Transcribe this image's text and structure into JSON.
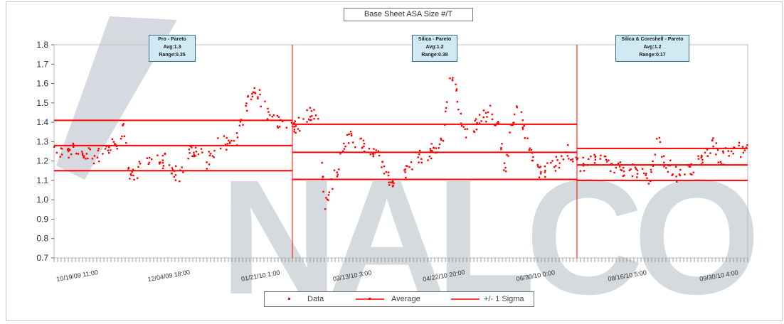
{
  "chart_data": {
    "type": "scatter",
    "title": "Base Sheet ASA Size #/T",
    "xlabel": "",
    "ylabel": "",
    "ylim": [
      0.7,
      1.8
    ],
    "y_ticks": [
      "1.8",
      "1.7",
      "1.6",
      "1.5",
      "1.4",
      "1.3",
      "1.2",
      "1.1",
      "1.0",
      "0.9",
      "0.8",
      "0.7"
    ],
    "x_tick_labels": [
      "10/19/09 11:00",
      "12/04/09 18:00",
      "01/21/10 1:00",
      "03/13/10 3:00",
      "04/22/10 20:00",
      "06/30/10 0:00",
      "08/16/10 5:00",
      "09/30/10 4:00"
    ],
    "legend_placement": "bottom",
    "grid": false,
    "colors": {
      "data": "#ff0000",
      "lines": "#ff0000",
      "watermark": "#b4bcc6"
    },
    "segments": [
      {
        "label": "Pro - Pareto",
        "avg_label": "Avg:1.3",
        "range_label": "Range:0.35",
        "average": 1.28,
        "upper_sigma": 1.41,
        "lower_sigma": 1.15
      },
      {
        "label": "Silica - Pareto",
        "avg_label": "Avg:1.2",
        "range_label": "Range:0.38",
        "average": 1.245,
        "upper_sigma": 1.39,
        "lower_sigma": 1.105
      },
      {
        "label": "Silica & Coreshell - Pareto",
        "avg_label": "Avg:1.2",
        "range_label": "Range:0.17",
        "average": 1.18,
        "upper_sigma": 1.265,
        "lower_sigma": 1.1
      }
    ],
    "series": [
      {
        "name": "Data",
        "trend": [
          [
            0,
            1.24
          ],
          [
            0.03,
            1.26
          ],
          [
            0.06,
            1.22
          ],
          [
            0.09,
            1.3
          ],
          [
            0.1,
            1.36
          ],
          [
            0.11,
            1.1
          ],
          [
            0.13,
            1.2
          ],
          [
            0.16,
            1.2
          ],
          [
            0.18,
            1.12
          ],
          [
            0.2,
            1.27
          ],
          [
            0.22,
            1.2
          ],
          [
            0.24,
            1.3
          ],
          [
            0.26,
            1.28
          ],
          [
            0.27,
            1.38
          ],
          [
            0.28,
            1.52
          ],
          [
            0.29,
            1.58
          ],
          [
            0.31,
            1.43
          ],
          [
            0.33,
            1.4
          ],
          [
            0.35,
            1.38
          ],
          [
            0.37,
            1.45
          ],
          [
            0.38,
            1.43
          ],
          [
            0.39,
            0.98
          ],
          [
            0.4,
            1.08
          ],
          [
            0.41,
            1.18
          ],
          [
            0.42,
            1.3
          ],
          [
            0.43,
            1.32
          ],
          [
            0.45,
            1.27
          ],
          [
            0.47,
            1.22
          ],
          [
            0.48,
            1.12
          ],
          [
            0.5,
            1.07
          ],
          [
            0.51,
            1.18
          ],
          [
            0.53,
            1.23
          ],
          [
            0.55,
            1.26
          ],
          [
            0.56,
            1.29
          ],
          [
            0.57,
            1.65
          ],
          [
            0.58,
            1.55
          ],
          [
            0.59,
            1.35
          ],
          [
            0.61,
            1.4
          ],
          [
            0.63,
            1.45
          ],
          [
            0.64,
            1.4
          ],
          [
            0.65,
            1.15
          ],
          [
            0.66,
            1.4
          ],
          [
            0.67,
            1.48
          ],
          [
            0.68,
            1.3
          ],
          [
            0.69,
            1.22
          ],
          [
            0.7,
            1.15
          ],
          [
            0.72,
            1.17
          ],
          [
            0.74,
            1.25
          ],
          [
            0.76,
            1.18
          ],
          [
            0.78,
            1.22
          ],
          [
            0.8,
            1.19
          ],
          [
            0.82,
            1.16
          ],
          [
            0.84,
            1.14
          ],
          [
            0.86,
            1.12
          ],
          [
            0.87,
            1.35
          ],
          [
            0.88,
            1.2
          ],
          [
            0.9,
            1.12
          ],
          [
            0.92,
            1.17
          ],
          [
            0.94,
            1.22
          ],
          [
            0.95,
            1.3
          ],
          [
            0.96,
            1.2
          ],
          [
            0.98,
            1.27
          ],
          [
            1.0,
            1.25
          ]
        ]
      },
      {
        "name": "Average"
      },
      {
        "name": "+/- 1 Sigma"
      }
    ]
  },
  "legend": {
    "data": "Data",
    "average": "Average",
    "sigma": "+/- 1 Sigma"
  },
  "watermark": "NALCO"
}
